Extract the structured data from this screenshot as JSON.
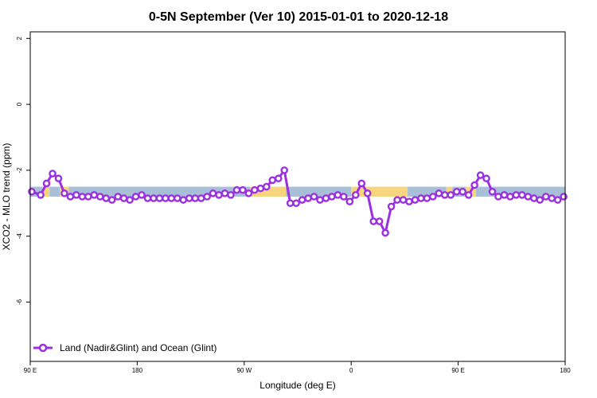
{
  "chart_data": {
    "type": "line",
    "title": "0-5N September (Ver 10)   2015-01-01 to 2020-12-18",
    "xlabel": "Longitude (deg E)",
    "ylabel": "XCO2 - MLO trend (ppm)",
    "xlim": [
      90,
      450
    ],
    "ylim": [
      -7.8,
      2.2
    ],
    "x_ticks": [
      {
        "value": 90,
        "label": "90 E"
      },
      {
        "value": 162,
        "label": "180"
      },
      {
        "value": 234,
        "label": "90 W"
      },
      {
        "value": 306,
        "label": "0"
      },
      {
        "value": 378,
        "label": "90 E"
      },
      {
        "value": 450,
        "label": "180"
      }
    ],
    "y_ticks": [
      {
        "value": 2,
        "label": "2"
      },
      {
        "value": 0,
        "label": "0"
      },
      {
        "value": -2,
        "label": "-2"
      },
      {
        "value": -4,
        "label": "-4"
      },
      {
        "value": -6,
        "label": "-6"
      }
    ],
    "grid": false,
    "legend": {
      "position": "bottom-left",
      "entries": [
        "Land (Nadir&Glint) and Ocean (Glint)"
      ]
    },
    "surface_band": {
      "y_range": [
        -2.8,
        -2.5
      ],
      "colors": {
        "ocean": "#a8bfd8",
        "land": "#f7d57e"
      },
      "segments": [
        {
          "type": "ocean",
          "x": [
            90,
            98
          ]
        },
        {
          "type": "land",
          "x": [
            98,
            103
          ]
        },
        {
          "type": "ocean",
          "x": [
            103,
            110
          ]
        },
        {
          "type": "land",
          "x": [
            110,
            116
          ]
        },
        {
          "type": "ocean",
          "x": [
            116,
            238
          ]
        },
        {
          "type": "land",
          "x": [
            238,
            262
          ]
        },
        {
          "type": "ocean",
          "x": [
            262,
            306
          ]
        },
        {
          "type": "land",
          "x": [
            306,
            344
          ]
        },
        {
          "type": "ocean",
          "x": [
            344,
            370
          ]
        },
        {
          "type": "land",
          "x": [
            370,
            374
          ]
        },
        {
          "type": "ocean",
          "x": [
            374,
            383
          ]
        },
        {
          "type": "land",
          "x": [
            383,
            390
          ]
        },
        {
          "type": "ocean",
          "x": [
            390,
            450
          ]
        }
      ]
    },
    "series": [
      {
        "name": "Land (Nadir&Glint) and Ocean (Glint)",
        "color": "#9b30e0",
        "x": [
          91,
          97,
          101,
          105,
          109,
          113,
          117,
          121,
          125,
          129,
          133,
          137,
          141,
          145,
          149,
          153,
          157,
          161,
          165,
          169,
          173,
          177,
          181,
          185,
          189,
          193,
          197,
          201,
          205,
          209,
          213,
          217,
          221,
          225,
          229,
          233,
          237,
          241,
          245,
          249,
          253,
          257,
          261,
          265,
          269,
          273,
          277,
          281,
          285,
          289,
          293,
          297,
          301,
          305,
          309,
          313,
          317,
          321,
          325,
          329,
          333,
          337,
          341,
          345,
          349,
          353,
          357,
          361,
          365,
          369,
          373,
          377,
          381,
          385,
          389,
          393,
          397,
          401,
          405,
          409,
          413,
          417,
          421,
          425,
          429,
          433,
          437,
          441,
          445,
          449
        ],
        "values": [
          -2.65,
          -2.75,
          -2.4,
          -2.1,
          -2.25,
          -2.7,
          -2.8,
          -2.75,
          -2.8,
          -2.8,
          -2.75,
          -2.8,
          -2.85,
          -2.9,
          -2.8,
          -2.85,
          -2.9,
          -2.8,
          -2.75,
          -2.85,
          -2.85,
          -2.85,
          -2.85,
          -2.85,
          -2.85,
          -2.9,
          -2.85,
          -2.85,
          -2.85,
          -2.8,
          -2.7,
          -2.75,
          -2.7,
          -2.75,
          -2.6,
          -2.6,
          -2.7,
          -2.6,
          -2.55,
          -2.5,
          -2.3,
          -2.25,
          -2.0,
          -3.0,
          -3.0,
          -2.9,
          -2.85,
          -2.8,
          -2.9,
          -2.85,
          -2.8,
          -2.75,
          -2.8,
          -2.95,
          -2.75,
          -2.4,
          -2.7,
          -3.55,
          -3.55,
          -3.9,
          -3.1,
          -2.9,
          -2.9,
          -2.95,
          -2.9,
          -2.85,
          -2.85,
          -2.8,
          -2.7,
          -2.75,
          -2.75,
          -2.65,
          -2.65,
          -2.75,
          -2.45,
          -2.15,
          -2.25,
          -2.65,
          -2.8,
          -2.75,
          -2.8,
          -2.75,
          -2.75,
          -2.8,
          -2.85,
          -2.9,
          -2.8,
          -2.85,
          -2.9,
          -2.8
        ]
      }
    ]
  }
}
